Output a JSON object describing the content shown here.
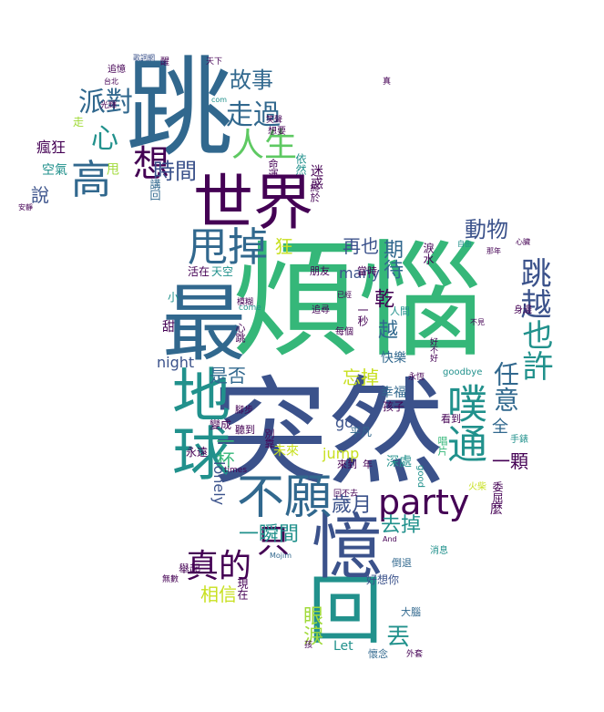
{
  "palette": {
    "dark_purple": "#440154",
    "indigo": "#3b528b",
    "blue": "#31688e",
    "teal": "#21918c",
    "green": "#35b779",
    "light_green": "#5ec962",
    "lime": "#a0da39",
    "yellow": "#c8e020",
    "background": "#ffffff"
  },
  "words": {
    "fan_nao": "煩惱",
    "tiao": "跳",
    "tu_ran": "突然",
    "shi_jie": "世界",
    "zui": "最",
    "di_qiu": "地球",
    "hui": "回",
    "yi": "憶",
    "bu_yuan": "不願",
    "party": "party",
    "shuai_diao": "甩掉",
    "pu_tong": "噗通",
    "tiao_yue": "跳越",
    "ye_xu": "也許",
    "ren_yi": "任意",
    "zhen_de": "真的",
    "zhi": "只",
    "gao": "高",
    "xiang": "想",
    "pai_dui": "派對",
    "xin": "心",
    "zou_guo": "走過",
    "ren_sheng": "人生",
    "gu_shi": "故事",
    "shi_jian": "時間",
    "dong_wu": "動物",
    "zai_ye": "再也",
    "kuang": "狂",
    "qi_dai": "期待",
    "qian": "乾",
    "yue": "越",
    "wang_diao": "忘掉",
    "shi_fou": "是否",
    "night": "night",
    "sui_yue": "歲月",
    "qu_diao": "去掉",
    "yi_shun_jian": "一瞬間",
    "xiang_xin": "相信",
    "yan_lei": "眼淚",
    "diu": "丟",
    "yi_ke": "一顆",
    "quan": "全",
    "yi_bei": "一杯",
    "lonely": "lonely",
    "many": "many",
    "go": "go",
    "jump": "jump",
    "let": "Let",
    "shuo": "說",
    "feng_kuang": "瘋狂",
    "kong_qi": "空氣",
    "shuai": "甩",
    "zou": "走",
    "ming_yun": "命運",
    "yi_ran": "依然",
    "jiang_hui": "講回",
    "mi_huo": "迷惑",
    "lei_shui": "淚水",
    "huo_zai": "活在",
    "tian_kong": "天空",
    "peng_you": "朋友",
    "dang_shi": "當時",
    "yi_miao": "一秒",
    "ren_jian": "人間",
    "kuai_le": "快樂",
    "xing_fu": "幸福",
    "hai_zi": "孩子",
    "ping_fan": "平凡",
    "wei_lai": "未來",
    "lai_dao": "來到",
    "nian": "年",
    "shen_chu": "深處",
    "wei_qu": "委屈",
    "me": "麼",
    "kan_dao": "看到",
    "chang_pian": "唱片",
    "shou_biao": "手錶",
    "huo_che": "火柴",
    "good": "good",
    "goodbye": "goodbye",
    "hao_xiang_ni": "好想你",
    "da_nao": "大腦",
    "huai_nian": "懷念",
    "wai_ke": "外套",
    "dao_tui": "倒退",
    "xiao_xi": "消息",
    "ju_qi": "舉起",
    "xian_zai": "現在",
    "bie_kao": "別靠",
    "zhui_xun": "追尋",
    "mei_ge": "每個",
    "tian_mi": "甜",
    "xiao": "小",
    "bian_cheng": "變成",
    "yong_yuan": "永遠",
    "ting_dao": "聽到",
    "wu_shu": "無數",
    "ge_ci": "歌詞網",
    "tai_bei": "台北",
    "zhui_yi": "追憶",
    "guang_hui": "光輝",
    "an_jing": "安靜",
    "zhong_yu": "終於",
    "xiang_yao": "想要",
    "xiao_sheng": "笑聲",
    "com": "com",
    "come": "come",
    "times": "times",
    "and": "And",
    "mojim": "Mojim",
    "tian_xia": "天下",
    "na_nian": "那年",
    "xin_zang": "心臟",
    "shen_bian": "身邊",
    "zi_you": "自由",
    "bu_jian": "不見",
    "yi_pei": "已經",
    "mo_hu": "模糊",
    "bu_fa": "腳步",
    "hao_bu_hao": "好不好",
    "yong_heng": "永恆",
    "hui_bu_qu": "回不去",
    "yi_dui": "一對",
    "mian_tian": "面天",
    "ji_ji": "積極",
    "bi": "蔽",
    "zhen": "真",
    "xin_tiao": "心跳",
    "qin": "親",
    "su": "速",
    "xing": "醒",
    "hai": "孩"
  }
}
